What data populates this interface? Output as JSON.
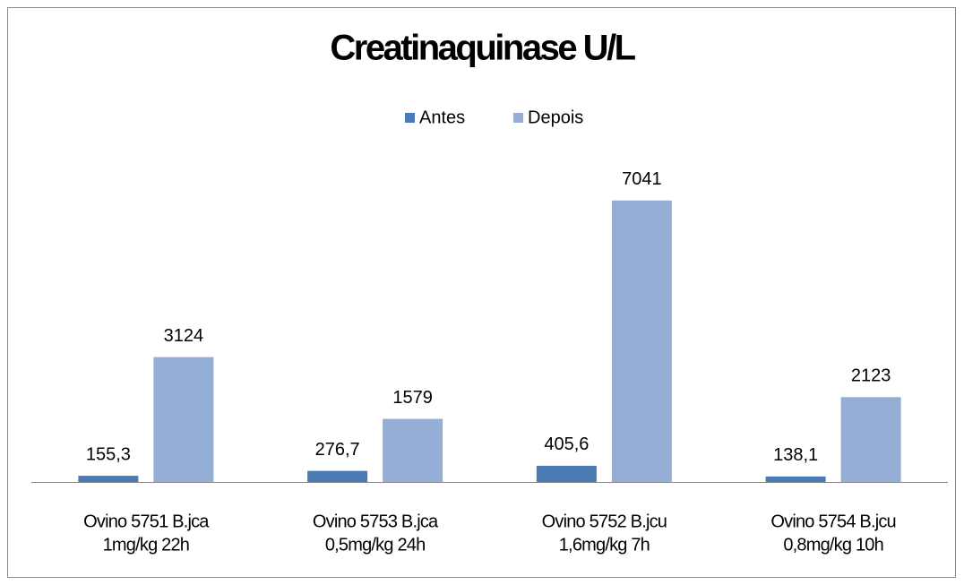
{
  "chart_data": {
    "type": "bar",
    "title": "Creatinaquinase U/L",
    "categories": [
      [
        "Ovino 5751 B.jca",
        "1mg/kg   22h"
      ],
      [
        "Ovino 5753 B.jca",
        "0,5mg/kg   24h"
      ],
      [
        "Ovino 5752 B.jcu",
        "1,6mg/kg   7h"
      ],
      [
        "Ovino 5754 B.jcu",
        "0,8mg/kg   10h"
      ]
    ],
    "series": [
      {
        "name": "Antes",
        "color": "#4a7bb5",
        "values": [
          155.3,
          276.7,
          405.6,
          138.1
        ],
        "value_labels": [
          "155,3",
          "276,7",
          "405,6",
          "138,1"
        ]
      },
      {
        "name": "Depois",
        "color": "#95aed6",
        "values": [
          3124,
          1579,
          7041,
          2123
        ]
      }
    ],
    "ylim": [
      0,
      8000
    ],
    "legend": "top"
  }
}
